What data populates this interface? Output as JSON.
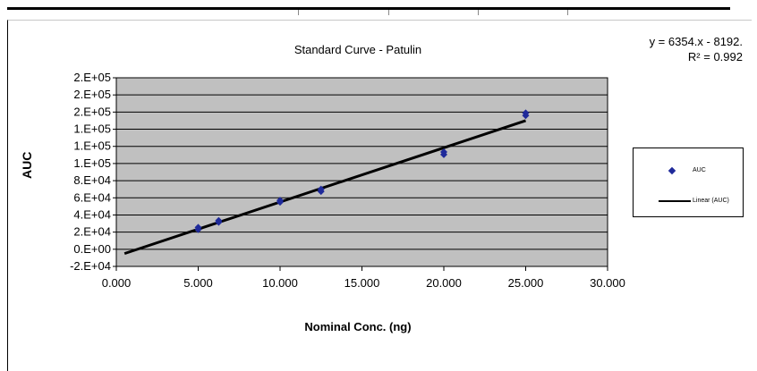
{
  "chart_data": {
    "type": "scatter",
    "title": "Standard Curve - Patulin",
    "xlabel": "Nominal Conc. (ng)",
    "ylabel": "AUC",
    "xlim": [
      0,
      30
    ],
    "ylim": [
      -20000,
      200000
    ],
    "x_ticks": [
      0,
      5,
      10,
      15,
      20,
      25,
      30
    ],
    "x_tick_labels": [
      "0.000",
      "5.000",
      "10.000",
      "15.000",
      "20.000",
      "25.000",
      "30.000"
    ],
    "y_ticks": [
      -20000,
      0,
      20000,
      40000,
      60000,
      80000,
      100000,
      120000,
      140000,
      160000,
      180000,
      200000
    ],
    "y_tick_labels": [
      "-2.E+04",
      "0.E+00",
      "2.E+04",
      "4.E+04",
      "6.E+04",
      "8.E+04",
      "1.E+05",
      "1.E+05",
      "1.E+05",
      "2.E+05",
      "2.E+05",
      "2.E+05"
    ],
    "grid": "horizontal",
    "plot_background": "#c0c0c0",
    "series": [
      {
        "name": "AUC",
        "kind": "scatter",
        "color": "#1f2a9a",
        "marker": "diamond",
        "x": [
          5,
          5,
          6.25,
          6.25,
          10,
          10,
          12.5,
          12.5,
          20,
          20,
          25,
          25
        ],
        "y": [
          23000,
          25500,
          31500,
          33500,
          55000,
          57000,
          67500,
          70000,
          110500,
          113500,
          156000,
          159000
        ]
      },
      {
        "name": "Linear (AUC)",
        "kind": "line",
        "color": "#000000",
        "x": [
          0.5,
          25
        ],
        "y": [
          -5000,
          150000
        ]
      }
    ],
    "equation": "y = 6354.x - 8192.",
    "r_squared": "R² = 0.992",
    "legend_position": "right"
  }
}
